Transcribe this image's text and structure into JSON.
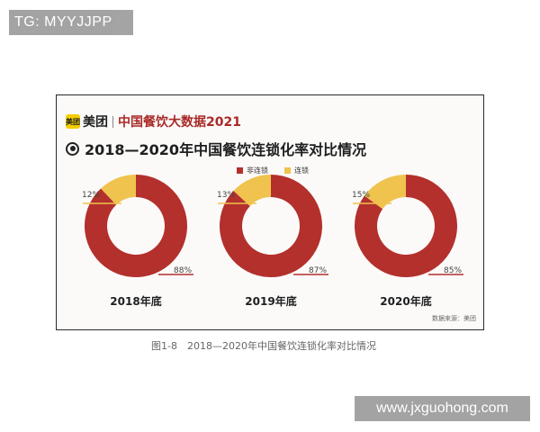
{
  "watermarks": {
    "top": "TG: MYYJJPP",
    "bottom": "www.jxguohong.com"
  },
  "header": {
    "logo_text": "美团",
    "brand": "美团",
    "report": "中国餐饮大数据2021",
    "title": "2018—2020年中国餐饮连锁化率对比情况"
  },
  "source": "数据来源：美团",
  "caption": "图1-8　2018—2020年中国餐饮连锁化率对比情况",
  "chart_data": {
    "type": "pie",
    "donut": true,
    "series_names": [
      "非连锁",
      "连锁"
    ],
    "colors": {
      "非连锁": "#b3302c",
      "连锁": "#f0c34e"
    },
    "legend_position": "top",
    "charts": [
      {
        "label": "2018年底",
        "values": [
          88,
          12
        ],
        "value_labels": [
          "88%",
          "12%"
        ]
      },
      {
        "label": "2019年底",
        "values": [
          87,
          13
        ],
        "value_labels": [
          "87%",
          "13%"
        ]
      },
      {
        "label": "2020年底",
        "values": [
          85,
          15
        ],
        "value_labels": [
          "85%",
          "15%"
        ]
      }
    ]
  }
}
